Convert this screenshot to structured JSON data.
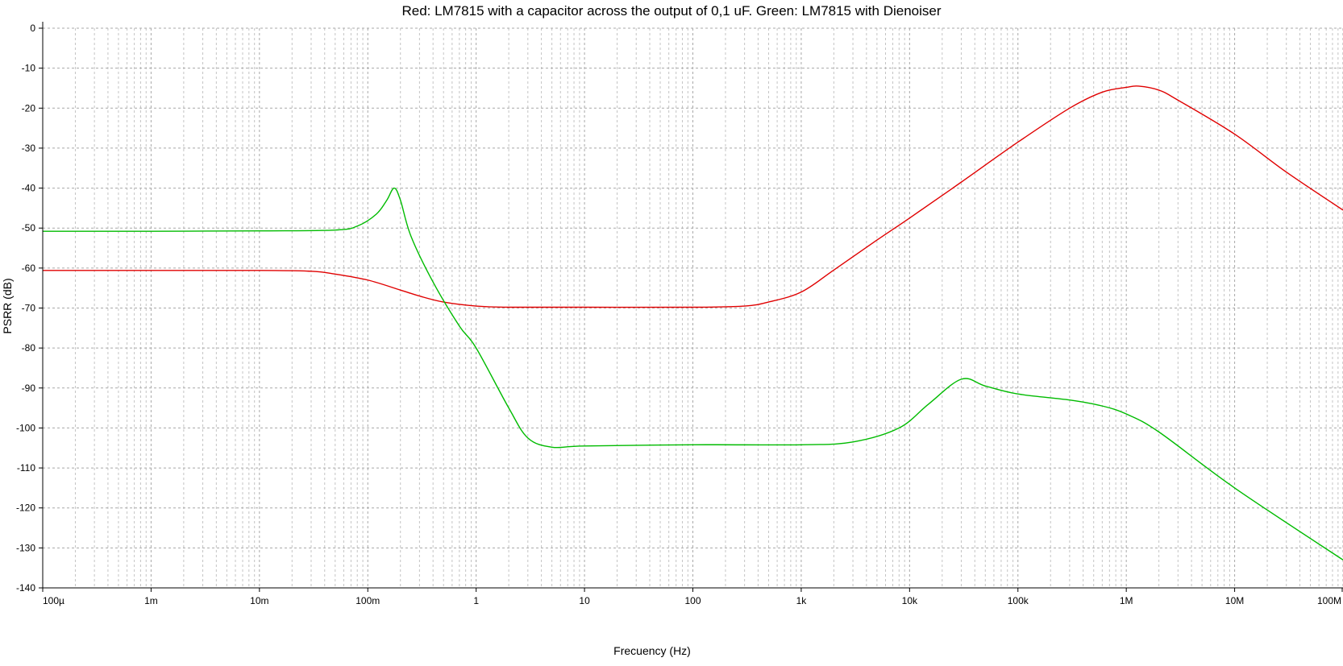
{
  "chart_data": {
    "type": "line",
    "title": "Red: LM7815 with a capacitor across the output of 0,1 uF. Green: LM7815 with Dienoiser",
    "xlabel": "Frecuency (Hz)",
    "ylabel": "PSRR (dB)",
    "x_scale": "log",
    "xlim": [
      0.0001,
      100000000
    ],
    "ylim": [
      -140,
      0
    ],
    "grid": true,
    "x_ticks": [
      {
        "value": 0.0001,
        "label": "100µ"
      },
      {
        "value": 0.001,
        "label": "1m"
      },
      {
        "value": 0.01,
        "label": "10m"
      },
      {
        "value": 0.1,
        "label": "100m"
      },
      {
        "value": 1,
        "label": "1"
      },
      {
        "value": 10,
        "label": "10"
      },
      {
        "value": 100,
        "label": "100"
      },
      {
        "value": 1000,
        "label": "1k"
      },
      {
        "value": 10000,
        "label": "10k"
      },
      {
        "value": 100000,
        "label": "100k"
      },
      {
        "value": 1000000,
        "label": "1M"
      },
      {
        "value": 10000000,
        "label": "10M"
      },
      {
        "value": 100000000,
        "label": "100M"
      }
    ],
    "y_ticks": [
      {
        "value": 0,
        "label": "0"
      },
      {
        "value": -10,
        "label": "-10"
      },
      {
        "value": -20,
        "label": "-20"
      },
      {
        "value": -30,
        "label": "-30"
      },
      {
        "value": -40,
        "label": "-40"
      },
      {
        "value": -50,
        "label": "-50"
      },
      {
        "value": -60,
        "label": "-60"
      },
      {
        "value": -70,
        "label": "-70"
      },
      {
        "value": -80,
        "label": "-80"
      },
      {
        "value": -90,
        "label": "-90"
      },
      {
        "value": -100,
        "label": "-100"
      },
      {
        "value": -110,
        "label": "-110"
      },
      {
        "value": -120,
        "label": "-120"
      },
      {
        "value": -130,
        "label": "-130"
      },
      {
        "value": -140,
        "label": "-140"
      }
    ],
    "series": [
      {
        "color": "#e00000",
        "points": [
          [
            0.0001,
            -60.6
          ],
          [
            0.001,
            -60.6
          ],
          [
            0.01,
            -60.6
          ],
          [
            0.03,
            -60.8
          ],
          [
            0.05,
            -61.5
          ],
          [
            0.1,
            -63.0
          ],
          [
            0.2,
            -65.5
          ],
          [
            0.3,
            -67.0
          ],
          [
            0.5,
            -68.5
          ],
          [
            1,
            -69.5
          ],
          [
            2,
            -69.8
          ],
          [
            10,
            -69.8
          ],
          [
            100,
            -69.8
          ],
          [
            300,
            -69.5
          ],
          [
            500,
            -68.5
          ],
          [
            1000,
            -66.0
          ],
          [
            2000,
            -60.5
          ],
          [
            5000,
            -53.0
          ],
          [
            10000,
            -47.5
          ],
          [
            30000,
            -38.5
          ],
          [
            100000,
            -28.5
          ],
          [
            300000,
            -20.0
          ],
          [
            600000,
            -16.0
          ],
          [
            1000000,
            -14.8
          ],
          [
            1300000,
            -14.5
          ],
          [
            2000000,
            -15.5
          ],
          [
            3000000,
            -18.0
          ],
          [
            10000000,
            -26.5
          ],
          [
            30000000,
            -36.0
          ],
          [
            100000000,
            -45.5
          ]
        ]
      },
      {
        "color": "#00bb00",
        "points": [
          [
            0.0001,
            -50.8
          ],
          [
            0.001,
            -50.8
          ],
          [
            0.01,
            -50.7
          ],
          [
            0.05,
            -50.5
          ],
          [
            0.08,
            -49.5
          ],
          [
            0.12,
            -46.5
          ],
          [
            0.15,
            -43.0
          ],
          [
            0.175,
            -40.0
          ],
          [
            0.2,
            -43.0
          ],
          [
            0.25,
            -52.0
          ],
          [
            0.4,
            -63.5
          ],
          [
            0.7,
            -74.5
          ],
          [
            1,
            -80.0
          ],
          [
            2,
            -95.0
          ],
          [
            3,
            -102.5
          ],
          [
            5,
            -104.8
          ],
          [
            10,
            -104.5
          ],
          [
            100,
            -104.2
          ],
          [
            1000,
            -104.2
          ],
          [
            3000,
            -103.5
          ],
          [
            8000,
            -100.0
          ],
          [
            15000,
            -94.0
          ],
          [
            30000,
            -87.8
          ],
          [
            50000,
            -89.5
          ],
          [
            100000,
            -91.5
          ],
          [
            300000,
            -93.0
          ],
          [
            600000,
            -94.5
          ],
          [
            1000000,
            -96.5
          ],
          [
            2000000,
            -101.0
          ],
          [
            10000000,
            -115.0
          ],
          [
            100000000,
            -133.0
          ]
        ]
      }
    ]
  }
}
